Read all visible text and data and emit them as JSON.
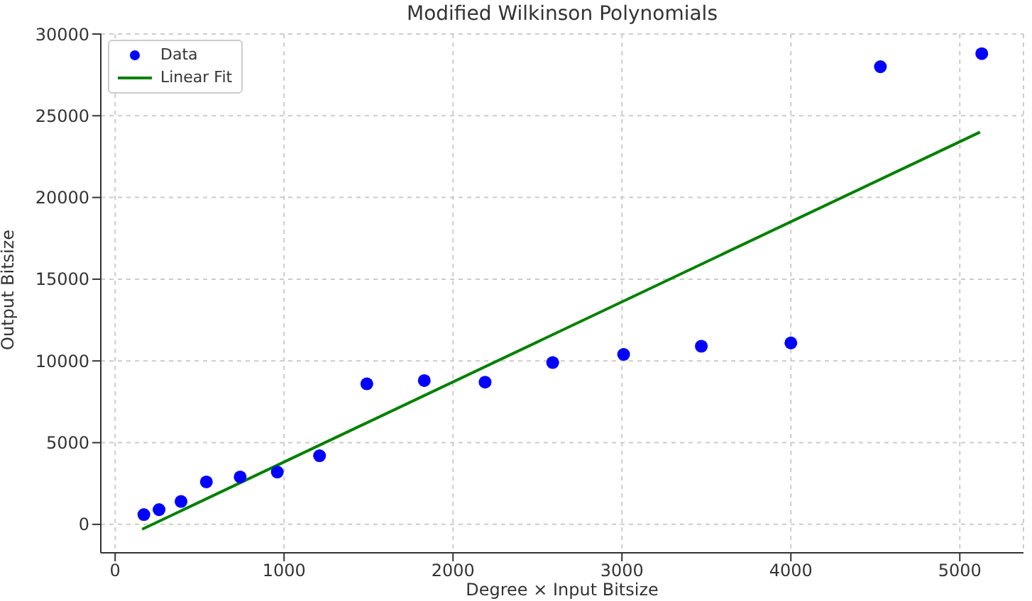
{
  "chart_data": {
    "type": "scatter",
    "title": "Modified Wilkinson Polynomials",
    "xlabel": "Degree × Input Bitsize",
    "ylabel": "Output Bitsize",
    "series": [
      {
        "name": "Data",
        "color": "#0000ff",
        "x": [
          170,
          260,
          390,
          540,
          740,
          960,
          1210,
          1490,
          1830,
          2190,
          2590,
          3010,
          3470,
          4000,
          4530,
          5130
        ],
        "values": [
          600,
          900,
          1400,
          2600,
          2900,
          3200,
          4200,
          8600,
          8800,
          8700,
          9900,
          10400,
          10900,
          11100,
          28000,
          28800
        ]
      },
      {
        "name": "Linear Fit",
        "type": "line",
        "marker": "none",
        "color": "#008000",
        "x": [
          160,
          5120
        ],
        "values": [
          -300,
          24000
        ]
      }
    ],
    "xlim": [
      -85,
      5377
    ],
    "xticks": [
      0,
      1000,
      2000,
      3000,
      4000,
      5000
    ],
    "ylim": [
      -1740,
      30000
    ],
    "yticks": [
      0,
      5000,
      10000,
      15000,
      20000,
      25000,
      30000
    ],
    "grid": true,
    "legend": "top left",
    "marker": "circle"
  }
}
